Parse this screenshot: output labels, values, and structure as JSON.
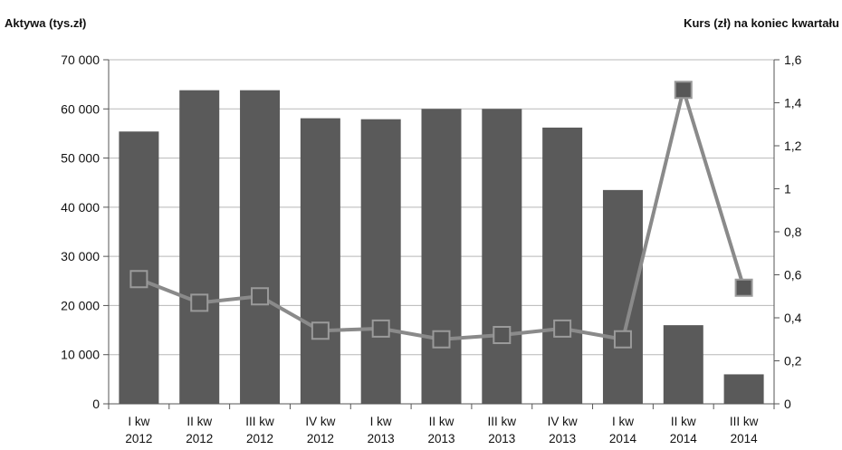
{
  "chart_data": {
    "type": "bar",
    "left_axis_title": "Aktywa (tys.zł)",
    "right_axis_title": "Kurs (zł) na koniec kwartału",
    "categories": [
      [
        "I kw",
        "2012"
      ],
      [
        "II kw",
        "2012"
      ],
      [
        "III kw",
        "2012"
      ],
      [
        "IV kw",
        "2012"
      ],
      [
        "I kw",
        "2013"
      ],
      [
        "II kw",
        "2013"
      ],
      [
        "III kw",
        "2013"
      ],
      [
        "IV kw",
        "2013"
      ],
      [
        "I kw",
        "2014"
      ],
      [
        "II kw",
        "2014"
      ],
      [
        "III kw",
        "2014"
      ]
    ],
    "series": [
      {
        "type": "bar",
        "axis": "left",
        "values": [
          55400,
          63800,
          63800,
          58100,
          57900,
          60000,
          60000,
          56200,
          43500,
          16000,
          6000
        ]
      },
      {
        "type": "line",
        "axis": "right",
        "marker": "square",
        "values": [
          0.58,
          0.47,
          0.5,
          0.34,
          0.35,
          0.3,
          0.32,
          0.35,
          0.3,
          1.46,
          0.54
        ]
      }
    ],
    "ylim_left": [
      0,
      70000
    ],
    "ylim_right": [
      0,
      1.6
    ],
    "left_ticks": [
      "0",
      "10 000",
      "20 000",
      "30 000",
      "40 000",
      "50 000",
      "60 000",
      "70 000"
    ],
    "right_ticks": [
      "0",
      "0,2",
      "0,4",
      "0,6",
      "0,8",
      "1",
      "1,2",
      "1,4",
      "1,6"
    ],
    "grid": true,
    "colors": {
      "bars": "#5a5a5a",
      "line": "#8a8a8a",
      "markers": "#575757"
    }
  }
}
